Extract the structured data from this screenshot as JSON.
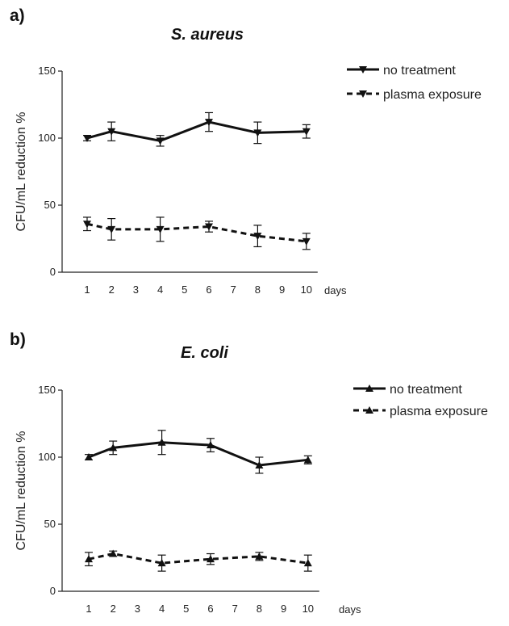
{
  "chart_data": [
    {
      "type": "line",
      "panel_label": "a)",
      "title": "S. aureus",
      "xlabel": "days",
      "ylabel": "CFU/mL reduction %",
      "x_ticks": [
        1,
        2,
        3,
        4,
        5,
        6,
        7,
        8,
        9,
        10
      ],
      "y_ticks": [
        0,
        50,
        100,
        150
      ],
      "xlim": [
        0,
        11
      ],
      "ylim": [
        0,
        150
      ],
      "legend_position": "top-right",
      "marker": "triangle-down",
      "series": [
        {
          "name": "no treatment",
          "style": "solid",
          "x": [
            1,
            2,
            4,
            6,
            8,
            10
          ],
          "y": [
            100,
            105,
            98,
            112,
            104,
            105
          ],
          "error": [
            2,
            7,
            4,
            7,
            8,
            5
          ]
        },
        {
          "name": "plasma exposure",
          "style": "dashed",
          "x": [
            1,
            2,
            4,
            6,
            8,
            10
          ],
          "y": [
            36,
            32,
            32,
            34,
            27,
            23
          ],
          "error": [
            5,
            8,
            9,
            4,
            8,
            6
          ]
        }
      ]
    },
    {
      "type": "line",
      "panel_label": "b)",
      "title": "E. coli",
      "xlabel": "days",
      "ylabel": "CFU/mL reduction %",
      "x_ticks": [
        1,
        2,
        3,
        4,
        5,
        6,
        7,
        8,
        9,
        10
      ],
      "y_ticks": [
        0,
        50,
        100,
        150
      ],
      "xlim": [
        0,
        11
      ],
      "ylim": [
        0,
        150
      ],
      "legend_position": "top-right",
      "marker": "triangle-up",
      "series": [
        {
          "name": "no treatment",
          "style": "solid",
          "x": [
            1,
            2,
            4,
            6,
            8,
            10
          ],
          "y": [
            100,
            107,
            111,
            109,
            94,
            98
          ],
          "error": [
            2,
            5,
            9,
            5,
            6,
            3
          ]
        },
        {
          "name": "plasma exposure",
          "style": "dashed",
          "x": [
            1,
            2,
            4,
            6,
            8,
            10
          ],
          "y": [
            24,
            28,
            21,
            24,
            26,
            21
          ],
          "error": [
            5,
            2,
            6,
            4,
            3,
            6
          ]
        }
      ]
    }
  ]
}
